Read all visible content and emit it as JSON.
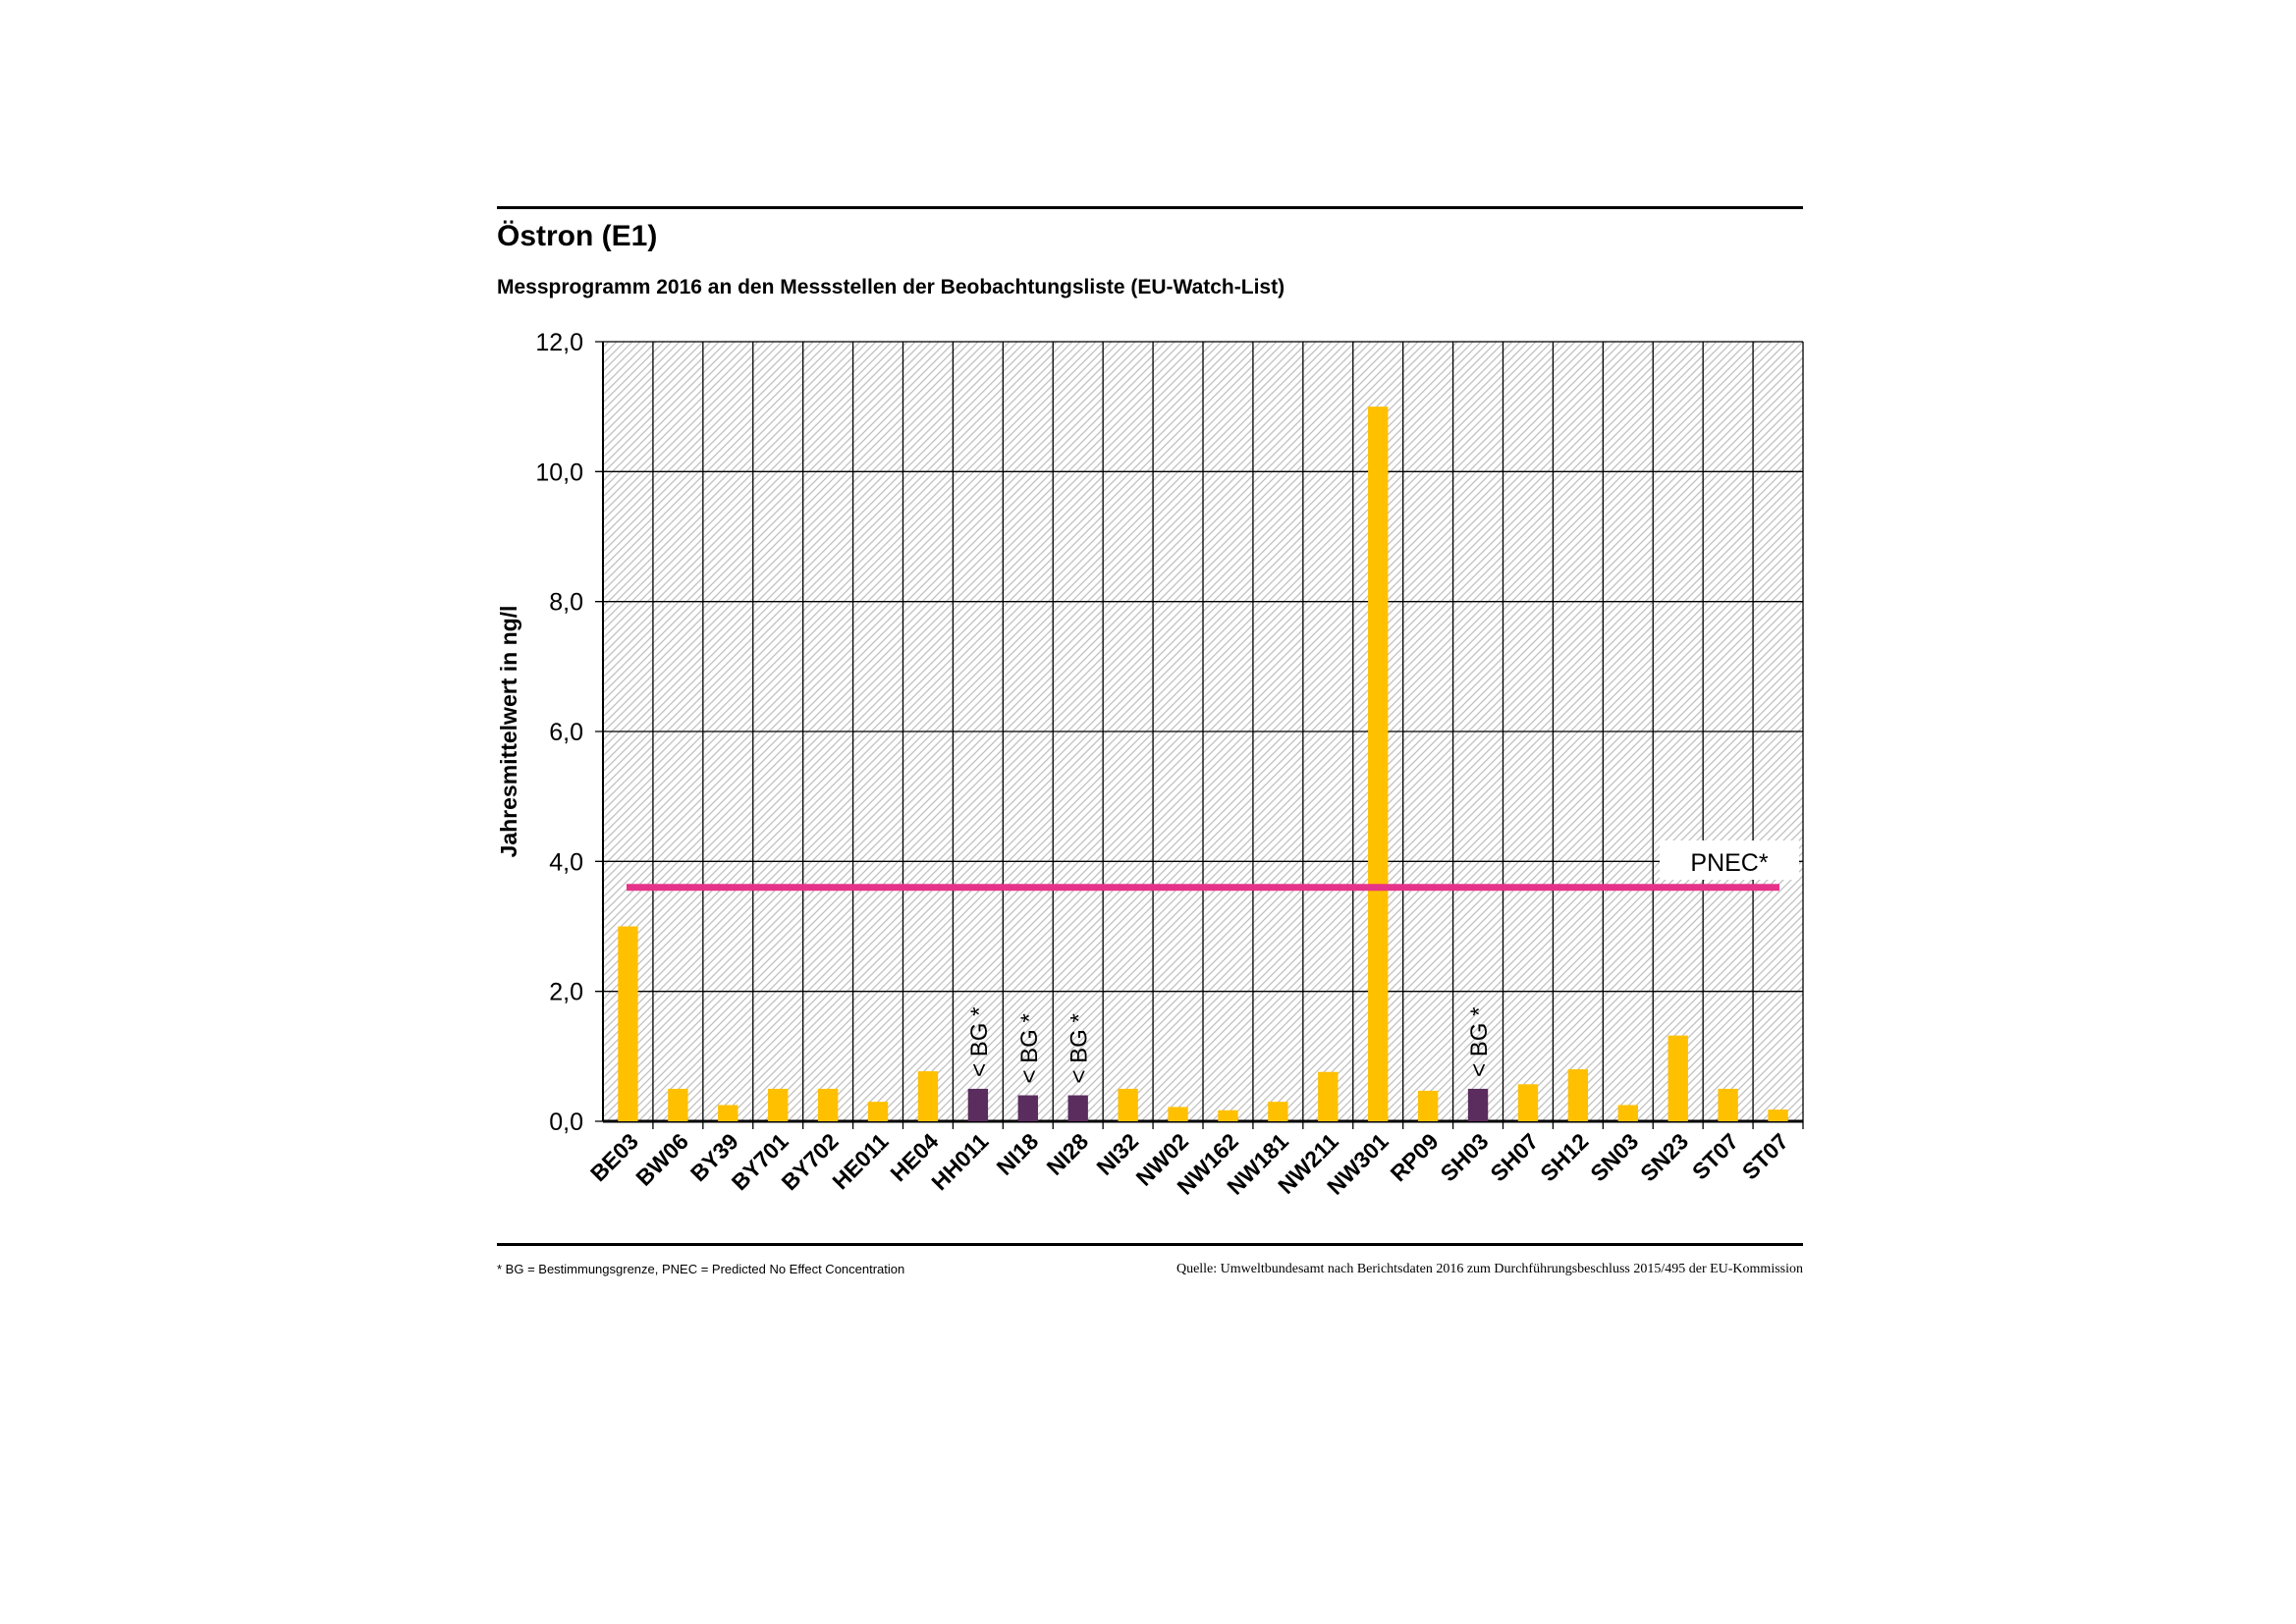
{
  "header": {
    "title": "Östron (E1)",
    "subtitle": "Messprogramm 2016 an den Messstellen der Beobachtungsliste (EU-Watch-List)"
  },
  "footer": {
    "footnote": "* BG = Bestimmungsgrenze, PNEC = Predicted No Effect Concentration",
    "source": "Quelle: Umweltbundesamt nach Berichtsdaten 2016 zum Durchführungsbeschluss 2015/495 der EU-Kommission"
  },
  "colors": {
    "bar_measured": "#FFC000",
    "bar_below_bg": "#5B2C5E",
    "pnec_line": "#E6338A",
    "grid": "#000000",
    "hatch": "#BFBFBF"
  },
  "chart_data": {
    "type": "bar",
    "ylabel": "Jahresmittelwert in ng/l",
    "ylim": [
      0,
      12
    ],
    "yticks": [
      "0,0",
      "2,0",
      "4,0",
      "6,0",
      "8,0",
      "10,0",
      "12,0"
    ],
    "ytick_values": [
      0,
      2,
      4,
      6,
      8,
      10,
      12
    ],
    "grid": true,
    "categories": [
      "BE03",
      "BW06",
      "BY39",
      "BY701",
      "BY702",
      "HE011",
      "HE04",
      "HH011",
      "NI18",
      "NI28",
      "NI32",
      "NW02",
      "NW162",
      "NW181",
      "NW211",
      "NW301",
      "RP09",
      "SH03",
      "SH07",
      "SH12",
      "SN03",
      "SN23",
      "ST07",
      "ST07"
    ],
    "values": [
      3.0,
      0.5,
      0.25,
      0.5,
      0.5,
      0.3,
      0.77,
      0.5,
      0.4,
      0.4,
      0.5,
      0.22,
      0.17,
      0.3,
      0.76,
      11.0,
      0.47,
      0.5,
      0.57,
      0.8,
      0.25,
      1.32,
      0.5,
      0.18
    ],
    "below_bg": [
      false,
      false,
      false,
      false,
      false,
      false,
      false,
      true,
      true,
      true,
      false,
      false,
      false,
      false,
      false,
      false,
      false,
      true,
      false,
      false,
      false,
      false,
      false,
      false
    ],
    "bg_label": "< BG *",
    "reference_line": {
      "label": "PNEC*",
      "value": 3.6
    }
  }
}
